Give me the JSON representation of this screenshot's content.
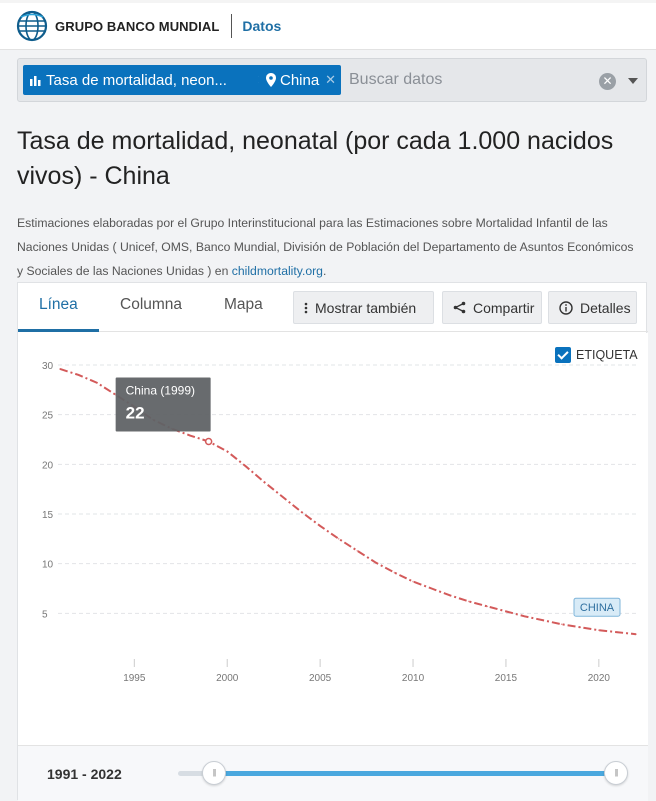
{
  "header": {
    "brand": "GRUPO BANCO MUNDIAL",
    "section": "Datos"
  },
  "search": {
    "chips": [
      "Tasa de mortalidad, neon...",
      "China"
    ],
    "placeholder": "Buscar datos"
  },
  "page": {
    "title": "Tasa de mortalidad, neonatal (por cada 1.000 nacidos vivos) - China",
    "description": "Estimaciones elaboradas por el Grupo Interinstitucional para las Estimaciones sobre Mortalidad Infantil de las Naciones Unidas ( Unicef, OMS, Banco Mundial, División de Población del Departamento de Asuntos Económicos y Sociales de las Naciones Unidas ) en",
    "source_link": "childmortality.org",
    "source_suffix": "."
  },
  "tabs": [
    "Línea",
    "Columna",
    "Mapa"
  ],
  "actions": {
    "show_also": "Mostrar también",
    "share": "Compartir",
    "details": "Detalles"
  },
  "label_toggle": "ETIQUETA",
  "tooltip": {
    "title": "China (1999)",
    "value": "22"
  },
  "range": {
    "label": "1991 - 2022"
  },
  "colors": {
    "series": "#d35a5a",
    "accent": "#0a72bd"
  },
  "chart_data": {
    "type": "line",
    "title": "",
    "xlabel": "",
    "ylabel": "",
    "xlim": [
      1991,
      2022
    ],
    "ylim": [
      0,
      30
    ],
    "yticks": [
      5,
      10,
      15,
      20,
      25,
      30
    ],
    "xticks": [
      1995,
      2000,
      2005,
      2010,
      2015,
      2020
    ],
    "grid": true,
    "series": [
      {
        "name": "CHINA",
        "x": [
          1991,
          1992,
          1993,
          1994,
          1995,
          1996,
          1997,
          1998,
          1999,
          2000,
          2001,
          2002,
          2003,
          2004,
          2005,
          2006,
          2007,
          2008,
          2009,
          2010,
          2011,
          2012,
          2013,
          2014,
          2015,
          2016,
          2017,
          2018,
          2019,
          2020,
          2021,
          2022
        ],
        "y": [
          29.6,
          29.0,
          28.2,
          27.0,
          25.8,
          24.5,
          23.6,
          22.9,
          22.3,
          21.3,
          19.8,
          18.2,
          16.7,
          15.2,
          13.8,
          12.5,
          11.3,
          10.1,
          9.1,
          8.2,
          7.5,
          6.8,
          6.2,
          5.7,
          5.2,
          4.7,
          4.3,
          3.9,
          3.6,
          3.3,
          3.1,
          2.9
        ]
      }
    ]
  }
}
